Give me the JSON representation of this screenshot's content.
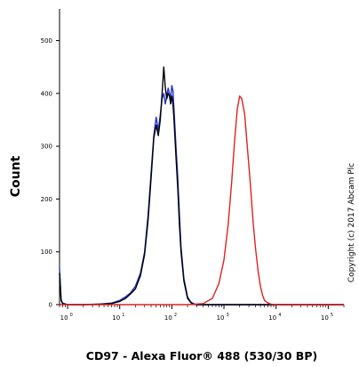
{
  "chart_data": {
    "type": "line",
    "title": "",
    "xlabel": "CD97 - Alexa Fluor® 488 (530/30 BP)",
    "ylabel": "Count",
    "x_scale": "log",
    "xlim": [
      0.7,
      200000
    ],
    "ylim": [
      0,
      560
    ],
    "yticks": [
      "0",
      "100",
      "200",
      "300",
      "400",
      "500"
    ],
    "xticks": [
      {
        "base": "10",
        "exp": "0"
      },
      {
        "base": "10",
        "exp": "1"
      },
      {
        "base": "10",
        "exp": "2"
      },
      {
        "base": "10",
        "exp": "3"
      },
      {
        "base": "10",
        "exp": "4"
      },
      {
        "base": "10",
        "exp": "5"
      }
    ],
    "grid": false,
    "legend": "none",
    "annotation": "Copyright (c) 2017 Abcam Plc",
    "series": [
      {
        "color": "#2233cc",
        "x": [
          0.7,
          0.75,
          0.8,
          1,
          2,
          4,
          7,
          10,
          13,
          16,
          20,
          25,
          30,
          35,
          40,
          45,
          50,
          55,
          60,
          65,
          70,
          75,
          80,
          85,
          90,
          95,
          100,
          105,
          110,
          120,
          130,
          140,
          150,
          170,
          200,
          230,
          260,
          300,
          400,
          1000,
          100000,
          200000
        ],
        "y": [
          70,
          10,
          3,
          0,
          0,
          1,
          3,
          8,
          15,
          22,
          35,
          60,
          100,
          170,
          250,
          320,
          355,
          330,
          360,
          390,
          400,
          380,
          395,
          410,
          400,
          390,
          415,
          405,
          370,
          300,
          240,
          170,
          110,
          50,
          15,
          5,
          2,
          0,
          0,
          0,
          0,
          0
        ]
      },
      {
        "color": "#000000",
        "x": [
          0.7,
          0.75,
          0.8,
          1,
          2,
          4,
          7,
          10,
          13,
          16,
          20,
          25,
          30,
          35,
          40,
          45,
          50,
          55,
          60,
          65,
          70,
          75,
          80,
          85,
          90,
          95,
          100,
          105,
          110,
          120,
          130,
          140,
          150,
          170,
          200,
          230,
          260,
          300,
          400,
          1000,
          100000,
          200000
        ],
        "y": [
          60,
          8,
          2,
          0,
          0,
          1,
          2,
          6,
          12,
          20,
          30,
          55,
          95,
          160,
          240,
          315,
          340,
          320,
          350,
          400,
          450,
          410,
          390,
          400,
          395,
          380,
          395,
          380,
          350,
          280,
          220,
          150,
          100,
          45,
          12,
          4,
          1,
          0,
          0,
          0,
          0,
          0
        ]
      },
      {
        "color": "#dd2222",
        "x": [
          0.7,
          200,
          400,
          600,
          800,
          1000,
          1200,
          1400,
          1600,
          1800,
          2000,
          2200,
          2500,
          2800,
          3200,
          3600,
          4000,
          4500,
          5000,
          5500,
          6000,
          7000,
          8000,
          10000,
          20000,
          200000
        ],
        "y": [
          0,
          0,
          2,
          12,
          40,
          85,
          150,
          230,
          310,
          370,
          395,
          390,
          360,
          300,
          230,
          160,
          110,
          65,
          35,
          18,
          8,
          3,
          1,
          0,
          0,
          0
        ]
      }
    ]
  }
}
